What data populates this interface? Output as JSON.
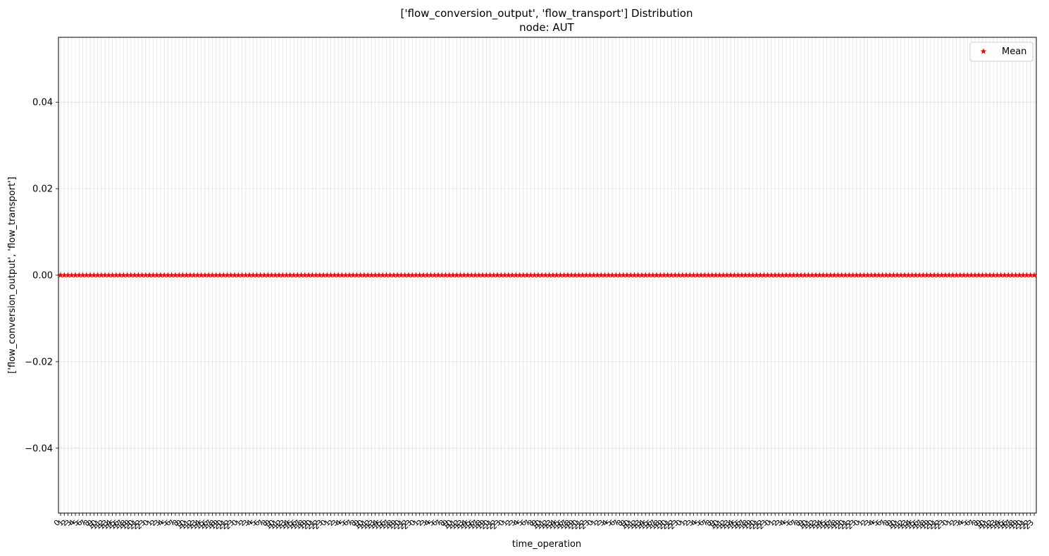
{
  "chart_data": {
    "type": "scatter",
    "title_line1": "['flow_conversion_output', 'flow_transport'] Distribution",
    "title_line2": "node: AUT",
    "xlabel": "time_operation",
    "ylabel": "['flow_conversion_output', 'flow_transport']",
    "ylim": [
      -0.055,
      0.055
    ],
    "yticks": [
      -0.04,
      -0.02,
      0.0,
      0.02,
      0.04
    ],
    "ytick_labels": [
      "−0.04",
      "−0.02",
      "0.00",
      "0.02",
      "0.04"
    ],
    "x_count": 264,
    "x_label_rule": "tick labels cycle 0..23 (hour of day) across 11 days",
    "grid": true,
    "legend_position": "upper right",
    "series": [
      {
        "name": "Mean",
        "marker": "star",
        "color": "#ff0000",
        "constant_value": 0.0
      }
    ]
  },
  "legend": {
    "label": "Mean"
  }
}
